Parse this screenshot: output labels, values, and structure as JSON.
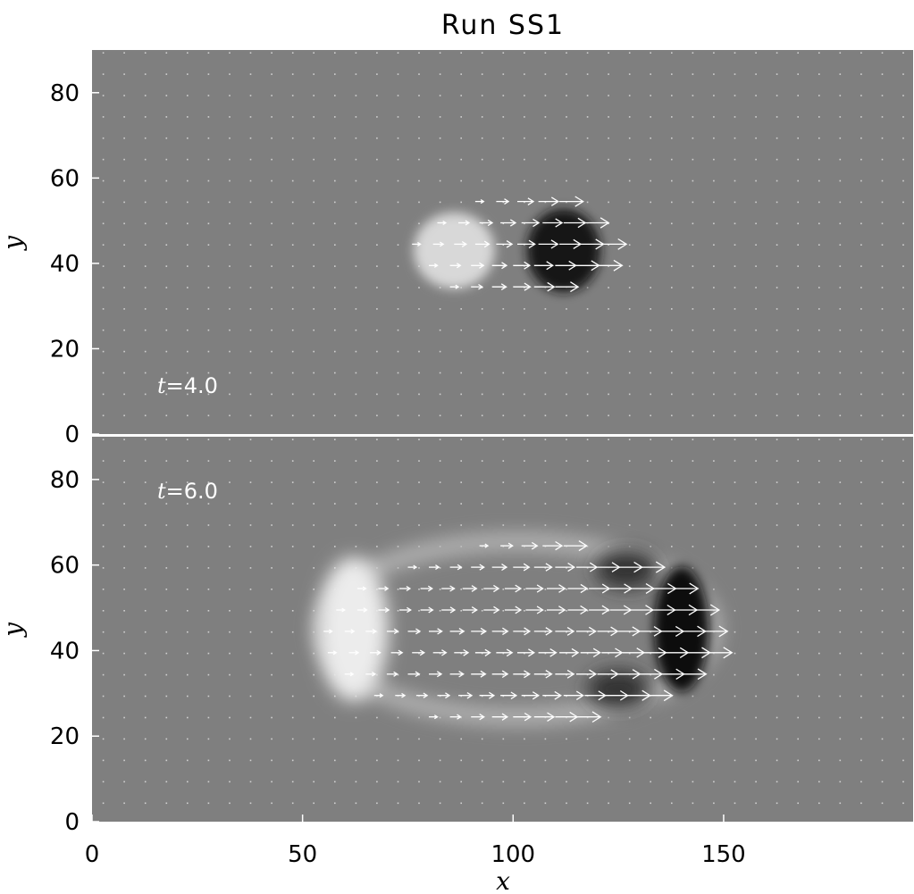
{
  "chart_data": [
    {
      "type": "heatmap",
      "title": "Run SS1",
      "xlabel": "",
      "ylabel": "y",
      "xlim": [
        0,
        195
      ],
      "ylim": [
        0,
        90
      ],
      "xticks": [
        0,
        50,
        100,
        150
      ],
      "yticks": [
        0,
        20,
        40,
        60,
        80
      ],
      "annotation": "t=4.0",
      "time": 4.0,
      "colormap": "grayscale",
      "background_color": "#7f7f7f",
      "structure": {
        "center": [
          101,
          43
        ],
        "x_extent": [
          76,
          122
        ],
        "y_extent": [
          33,
          56
        ],
        "bright_side": "left",
        "dark_side": "right"
      },
      "vector_rows": [
        {
          "y": 54.5,
          "x_start": 91,
          "x_end": 113
        },
        {
          "y": 49.5,
          "x_start": 82,
          "x_end": 120
        },
        {
          "y": 44.5,
          "x_start": 76,
          "x_end": 122
        },
        {
          "y": 39.5,
          "x_start": 80,
          "x_end": 121
        },
        {
          "y": 34.5,
          "x_start": 85,
          "x_end": 114
        }
      ]
    },
    {
      "type": "heatmap",
      "title": "",
      "xlabel": "x",
      "ylabel": "y",
      "xlim": [
        0,
        195
      ],
      "ylim": [
        0,
        90
      ],
      "xticks": [
        0,
        50,
        100,
        150
      ],
      "yticks": [
        0,
        20,
        40,
        60,
        80
      ],
      "annotation": "t=6.0",
      "time": 6.0,
      "colormap": "grayscale",
      "background_color": "#7f7f7f",
      "structure": {
        "center": [
          101,
          45
        ],
        "x_extent": [
          54,
          147
        ],
        "y_extent": [
          24,
          65
        ],
        "bright_side": "left",
        "dark_side": "right"
      },
      "vector_rows": [
        {
          "y": 64.5,
          "x_start": 92,
          "x_end": 115
        },
        {
          "y": 59.5,
          "x_start": 75,
          "x_end": 130
        },
        {
          "y": 54.5,
          "x_start": 63,
          "x_end": 140
        },
        {
          "y": 49.5,
          "x_start": 58,
          "x_end": 145
        },
        {
          "y": 44.5,
          "x_start": 55,
          "x_end": 147
        },
        {
          "y": 39.5,
          "x_start": 56,
          "x_end": 146
        },
        {
          "y": 34.5,
          "x_start": 60,
          "x_end": 143
        },
        {
          "y": 29.5,
          "x_start": 67,
          "x_end": 135
        },
        {
          "y": 24.5,
          "x_start": 80,
          "x_end": 117
        }
      ]
    }
  ]
}
